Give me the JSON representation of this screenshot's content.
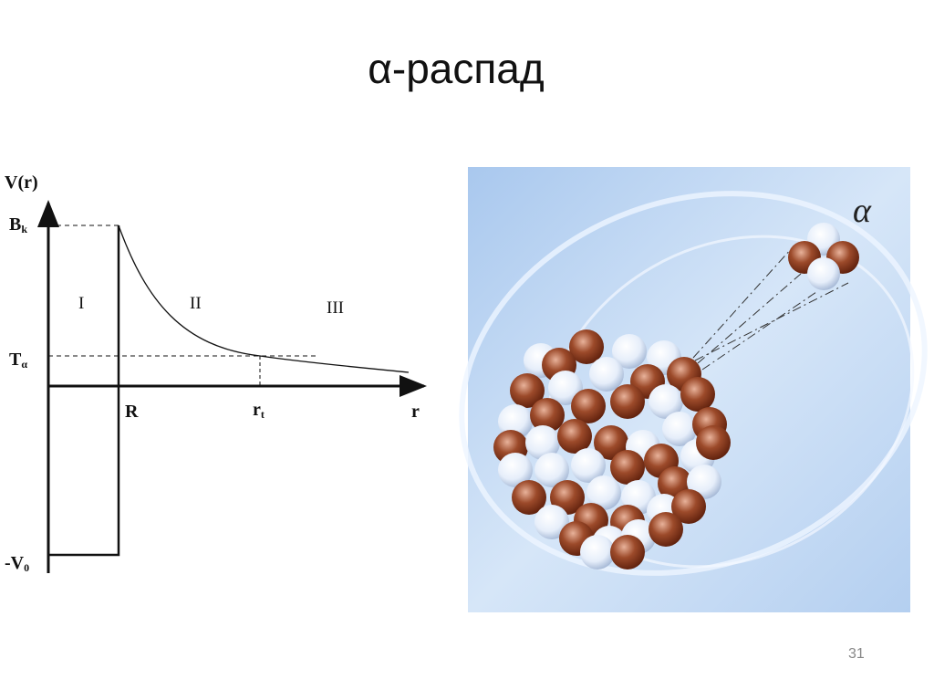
{
  "header": {
    "title": "α-распад"
  },
  "diagram": {
    "y_axis_label": "V(r)",
    "x_axis_label": "r",
    "barrier_label": {
      "base": "B",
      "sub": "k"
    },
    "energy_label": {
      "base": "T",
      "sub": "α"
    },
    "well_label": {
      "base": "-V",
      "sub": "0"
    },
    "radius_label": "R",
    "turning_point_label": {
      "base": "r",
      "sub": "t"
    },
    "regions": [
      "I",
      "II",
      "III"
    ]
  },
  "illustration": {
    "particle_label": "α"
  },
  "footer": {
    "page_number": "31"
  }
}
